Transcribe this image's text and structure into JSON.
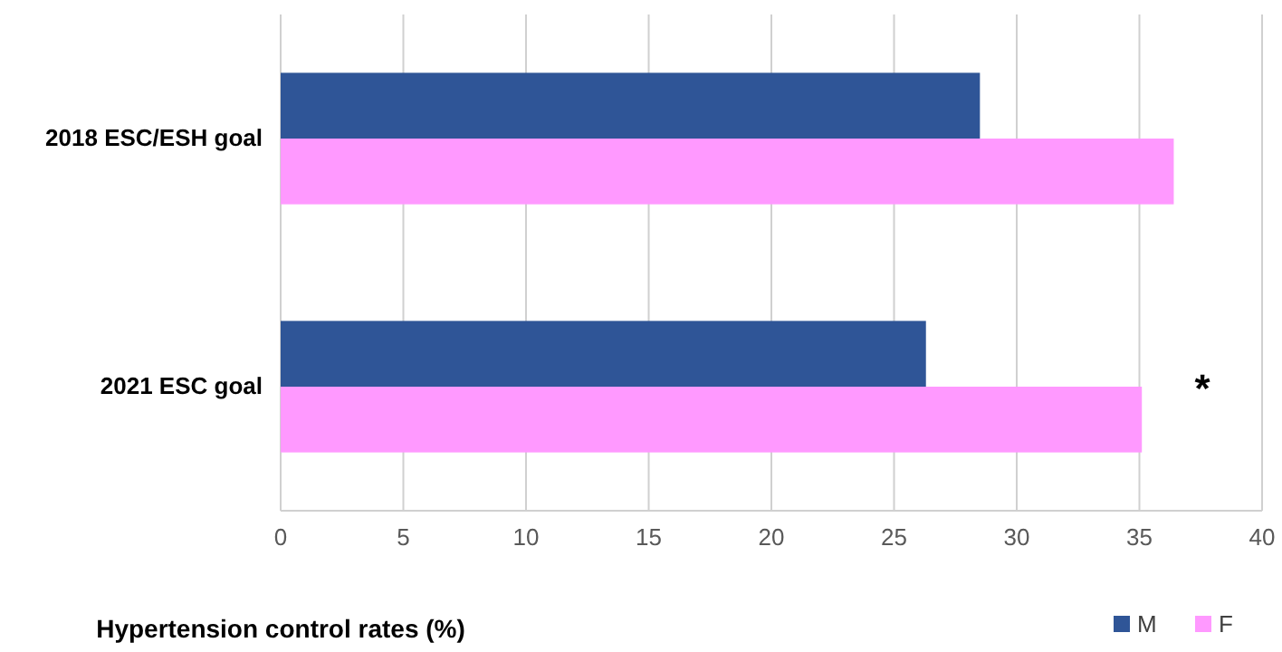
{
  "chart_data": {
    "type": "bar",
    "orientation": "horizontal",
    "xlabel": "Hypertension control rates (%)",
    "categories": [
      "2018 ESC/ESH goal",
      "2021 ESC goal"
    ],
    "series": [
      {
        "name": "M",
        "color": "#2f5597",
        "values": [
          28.5,
          26.3
        ]
      },
      {
        "name": "F",
        "color": "#ff99ff",
        "values": [
          36.4,
          35.1
        ]
      }
    ],
    "xlim": [
      0,
      40
    ],
    "xticks": [
      0,
      5,
      10,
      15,
      20,
      25,
      30,
      35,
      40
    ],
    "grid": "x",
    "legend": "bottom right",
    "annotations": [
      "*"
    ]
  }
}
